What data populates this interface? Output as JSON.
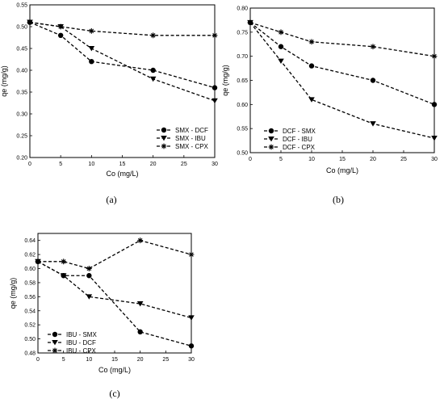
{
  "chart_data": [
    {
      "panel": "(a)",
      "type": "line",
      "xlabel": "Co (mg/L)",
      "ylabel": "qe (mg/g)",
      "xlim": [
        0,
        30
      ],
      "ylim": [
        0.2,
        0.55
      ],
      "xticks": [
        "0",
        "5",
        "10",
        "15",
        "20",
        "25",
        "30"
      ],
      "yticks": [
        "0.20",
        "0.25",
        "0.30",
        "0.35",
        "0.40",
        "0.45",
        "0.50",
        "0.55"
      ],
      "legend_position": "bottom-right",
      "x": [
        0,
        5,
        10,
        20,
        30
      ],
      "series": [
        {
          "name": "SMX - DCF",
          "marker": "circle",
          "values": [
            0.51,
            0.48,
            0.42,
            0.4,
            0.36
          ]
        },
        {
          "name": "SMX - IBU",
          "marker": "triangle-down",
          "values": [
            0.51,
            0.5,
            0.45,
            0.38,
            0.33
          ]
        },
        {
          "name": "SMX - CPX",
          "marker": "star",
          "values": [
            0.51,
            0.5,
            0.49,
            0.48,
            0.48
          ]
        }
      ]
    },
    {
      "panel": "(b)",
      "type": "line",
      "xlabel": "Co (mg/L)",
      "ylabel": "qe (mg/g)",
      "xlim": [
        0,
        30
      ],
      "ylim": [
        0.5,
        0.8
      ],
      "xticks": [
        "0",
        "5",
        "10",
        "15",
        "20",
        "25",
        "30"
      ],
      "yticks": [
        "0.50",
        "0.55",
        "0.60",
        "0.65",
        "0.70",
        "0.75",
        "0.80"
      ],
      "legend_position": "bottom-left",
      "x": [
        0,
        5,
        10,
        20,
        30
      ],
      "series": [
        {
          "name": "DCF - SMX",
          "marker": "circle",
          "values": [
            0.77,
            0.72,
            0.68,
            0.65,
            0.6
          ]
        },
        {
          "name": "DCF - IBU",
          "marker": "triangle-down",
          "values": [
            0.77,
            0.69,
            0.61,
            0.56,
            0.53
          ]
        },
        {
          "name": "DCF - CPX",
          "marker": "star",
          "values": [
            0.77,
            0.75,
            0.73,
            0.72,
            0.7
          ]
        }
      ]
    },
    {
      "panel": "(c)",
      "type": "line",
      "xlabel": "Co (mg/L)",
      "ylabel": "qe (mg/g)",
      "xlim": [
        0,
        30
      ],
      "ylim": [
        0.48,
        0.65
      ],
      "xticks": [
        "0",
        "5",
        "10",
        "15",
        "20",
        "25",
        "30"
      ],
      "yticks": [
        "0.48",
        "0.50",
        "0.52",
        "0.54",
        "0.56",
        "0.58",
        "0.60",
        "0.62",
        "0.64"
      ],
      "legend_position": "bottom-left",
      "x": [
        0,
        5,
        10,
        20,
        30
      ],
      "series": [
        {
          "name": "IBU - SMX",
          "marker": "circle",
          "values": [
            0.61,
            0.59,
            0.59,
            0.51,
            0.49
          ]
        },
        {
          "name": "IBU - DCF",
          "marker": "triangle-down",
          "values": [
            0.61,
            0.59,
            0.56,
            0.55,
            0.53
          ]
        },
        {
          "name": "IBU - CPX",
          "marker": "star",
          "values": [
            0.61,
            0.61,
            0.6,
            0.64,
            0.62
          ]
        }
      ]
    }
  ],
  "colors": {
    "line": "#000000",
    "frame": "#000000",
    "background": "#ffffff"
  }
}
